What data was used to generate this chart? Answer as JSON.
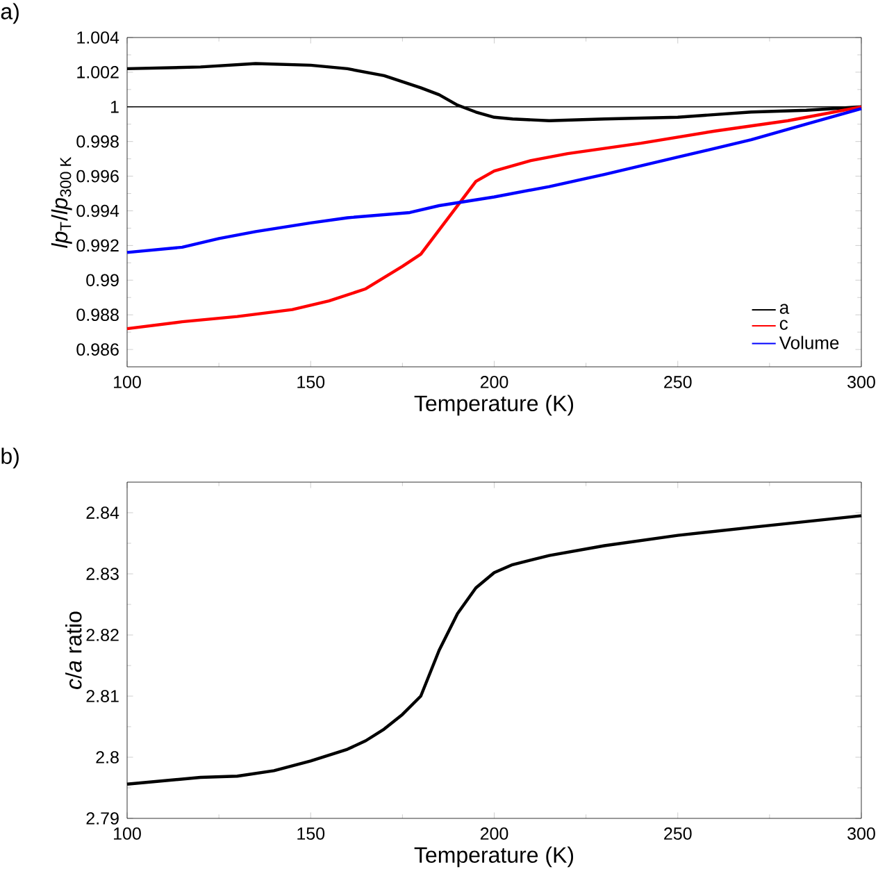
{
  "chart_data": [
    {
      "type": "line",
      "xlabel": "Temperature (K)",
      "ylabel": "*lp*$_{T}$/*lp*$_{300 K}$",
      "annotations": [
        "a)"
      ],
      "xlim": [
        100,
        300
      ],
      "ylim": [
        0.985,
        1.004
      ],
      "xticks": [
        100,
        150,
        200,
        250,
        300
      ],
      "yticks": [
        0.986,
        0.988,
        0.99,
        0.992,
        0.994,
        0.996,
        0.998,
        1,
        1.002,
        1.004
      ],
      "legend": "bottom right",
      "grid": false,
      "marker": "none",
      "line_style": "solid",
      "ref_lines": [
        {
          "axis": "y",
          "value": 1,
          "color": "#000000"
        }
      ],
      "series": [
        {
          "name": "a",
          "color": "#000000",
          "x": [
            100,
            120,
            135,
            150,
            160,
            170,
            180,
            185,
            190,
            195,
            200,
            205,
            215,
            230,
            250,
            270,
            285,
            300
          ],
          "values": [
            1.0022,
            1.0023,
            1.0025,
            1.0024,
            1.0022,
            1.0018,
            1.0011,
            1.0007,
            1.0001,
            0.9997,
            0.9994,
            0.9993,
            0.9992,
            0.9993,
            0.9994,
            0.9997,
            0.9998,
            1.0
          ]
        },
        {
          "name": "c",
          "color": "#ff0000",
          "x": [
            100,
            115,
            130,
            145,
            155,
            165,
            175,
            180,
            185,
            190,
            195,
            200,
            210,
            220,
            240,
            260,
            280,
            300
          ],
          "values": [
            0.9872,
            0.9876,
            0.9879,
            0.9883,
            0.9888,
            0.9895,
            0.9908,
            0.9915,
            0.9929,
            0.9943,
            0.9957,
            0.9963,
            0.9969,
            0.9973,
            0.9979,
            0.9986,
            0.9992,
            1.0
          ]
        },
        {
          "name": "Volume",
          "color": "#0000ff",
          "x": [
            100,
            115,
            125,
            135,
            150,
            160,
            177,
            185,
            200,
            215,
            230,
            250,
            270,
            285,
            300
          ],
          "values": [
            0.9916,
            0.9919,
            0.9924,
            0.9928,
            0.9933,
            0.9936,
            0.9939,
            0.9943,
            0.9948,
            0.9954,
            0.9961,
            0.9971,
            0.9981,
            0.999,
            0.9999
          ]
        }
      ]
    },
    {
      "type": "line",
      "xlabel": "Temperature (K)",
      "ylabel": "*c*/*a* ratio",
      "annotations": [
        "b)"
      ],
      "xlim": [
        100,
        300
      ],
      "ylim": [
        2.79,
        2.845
      ],
      "xticks": [
        100,
        150,
        200,
        250,
        300
      ],
      "yticks": [
        2.79,
        2.8,
        2.81,
        2.82,
        2.83,
        2.84
      ],
      "grid": false,
      "marker": "none",
      "line_style": "solid",
      "series": [
        {
          "color": "#000000",
          "x": [
            100,
            120,
            130,
            140,
            150,
            160,
            165,
            170,
            175,
            180,
            185,
            190,
            195,
            200,
            205,
            215,
            230,
            250,
            270,
            300
          ],
          "values": [
            2.7956,
            2.7967,
            2.7969,
            2.7978,
            2.7994,
            2.8013,
            2.8027,
            2.8046,
            2.807,
            2.81,
            2.8175,
            2.8235,
            2.8277,
            2.8302,
            2.8315,
            2.833,
            2.8346,
            2.8363,
            2.8376,
            2.8395
          ]
        }
      ]
    }
  ]
}
